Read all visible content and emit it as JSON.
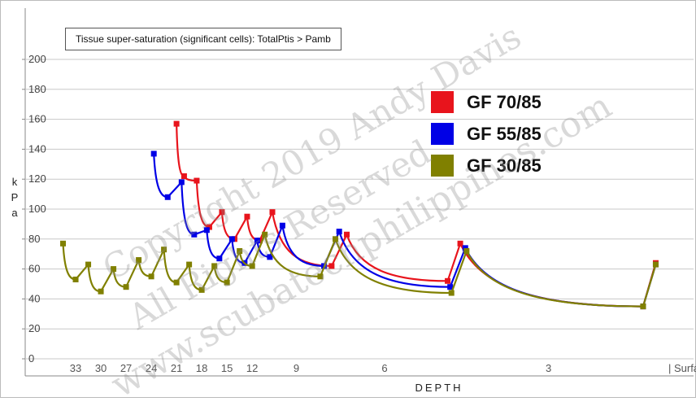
{
  "chart_data": {
    "type": "line",
    "title": "Tissue super-saturation (significant cells): TotalPtis > Pamb",
    "ylabel": "kPa",
    "xlabel": "DEPTH",
    "ylim": [
      0,
      200
    ],
    "y_ticks": [
      0,
      20,
      40,
      60,
      80,
      100,
      120,
      140,
      160,
      180,
      200
    ],
    "x_tick_labels": [
      {
        "label": "33",
        "x": 1
      },
      {
        "label": "30",
        "x": 3
      },
      {
        "label": "27",
        "x": 5
      },
      {
        "label": "24",
        "x": 7
      },
      {
        "label": "21",
        "x": 9
      },
      {
        "label": "18",
        "x": 11
      },
      {
        "label": "15",
        "x": 13
      },
      {
        "label": "12",
        "x": 15
      },
      {
        "label": "9",
        "x": 18.5
      },
      {
        "label": "6",
        "x": 25.5
      },
      {
        "label": "3",
        "x": 38.5
      },
      {
        "label": "| Surface -->",
        "x": 48
      }
    ],
    "xlim": [
      -3,
      50
    ],
    "grid": true,
    "legend_position": "top-right",
    "series": [
      {
        "name": "GF 70/85",
        "color": "#e8141c",
        "points": [
          {
            "x": 9,
            "y": 157
          },
          {
            "x": 9.6,
            "y": 122
          },
          {
            "x": 10.6,
            "y": 119
          },
          {
            "x": 11.6,
            "y": 88
          },
          {
            "x": 12.6,
            "y": 98
          },
          {
            "x": 13.6,
            "y": 80
          },
          {
            "x": 14.6,
            "y": 95
          },
          {
            "x": 15.6,
            "y": 79
          },
          {
            "x": 16.6,
            "y": 98
          },
          {
            "x": 21.3,
            "y": 62
          },
          {
            "x": 22.5,
            "y": 83
          },
          {
            "x": 30.5,
            "y": 52
          },
          {
            "x": 31.5,
            "y": 77
          },
          {
            "x": 46,
            "y": 35
          },
          {
            "x": 47,
            "y": 64
          }
        ],
        "segments": [
          [
            0,
            1
          ],
          [
            1,
            2
          ],
          [
            2,
            3
          ],
          [
            3,
            4
          ],
          [
            4,
            5
          ],
          [
            5,
            6
          ],
          [
            6,
            7
          ],
          [
            7,
            8
          ],
          [
            8,
            9
          ],
          [
            9,
            10
          ],
          [
            10,
            11
          ],
          [
            11,
            12
          ],
          [
            12,
            13
          ],
          [
            13,
            14
          ]
        ]
      },
      {
        "name": "GF 55/85",
        "color": "#0000e6",
        "points": [
          {
            "x": 7.2,
            "y": 137
          },
          {
            "x": 8.3,
            "y": 108
          },
          {
            "x": 9.4,
            "y": 118
          },
          {
            "x": 10.4,
            "y": 83
          },
          {
            "x": 11.4,
            "y": 86
          },
          {
            "x": 12.4,
            "y": 67
          },
          {
            "x": 13.4,
            "y": 80
          },
          {
            "x": 14.4,
            "y": 64
          },
          {
            "x": 15.4,
            "y": 79
          },
          {
            "x": 16.4,
            "y": 68
          },
          {
            "x": 17.4,
            "y": 89
          },
          {
            "x": 20.7,
            "y": 62
          },
          {
            "x": 21.9,
            "y": 85
          },
          {
            "x": 30.7,
            "y": 48
          },
          {
            "x": 31.9,
            "y": 74
          },
          {
            "x": 46,
            "y": 35
          },
          {
            "x": 47,
            "y": 63
          }
        ],
        "segments": [
          [
            0,
            1
          ],
          [
            1,
            2
          ],
          [
            2,
            3
          ],
          [
            3,
            4
          ],
          [
            4,
            5
          ],
          [
            5,
            6
          ],
          [
            6,
            7
          ],
          [
            7,
            8
          ],
          [
            8,
            9
          ],
          [
            9,
            10
          ],
          [
            10,
            11
          ],
          [
            11,
            12
          ],
          [
            12,
            13
          ],
          [
            13,
            14
          ],
          [
            14,
            15
          ],
          [
            15,
            16
          ]
        ]
      },
      {
        "name": "GF 30/85",
        "color": "#808000",
        "points": [
          {
            "x": 0,
            "y": 77
          },
          {
            "x": 1,
            "y": 53
          },
          {
            "x": 2,
            "y": 63
          },
          {
            "x": 3,
            "y": 45
          },
          {
            "x": 4,
            "y": 60
          },
          {
            "x": 5,
            "y": 48
          },
          {
            "x": 6,
            "y": 66
          },
          {
            "x": 7,
            "y": 55
          },
          {
            "x": 8,
            "y": 73
          },
          {
            "x": 9,
            "y": 51
          },
          {
            "x": 10,
            "y": 63
          },
          {
            "x": 11,
            "y": 46
          },
          {
            "x": 12,
            "y": 62
          },
          {
            "x": 13,
            "y": 51
          },
          {
            "x": 14,
            "y": 72
          },
          {
            "x": 15,
            "y": 62
          },
          {
            "x": 16,
            "y": 83
          },
          {
            "x": 20.4,
            "y": 55
          },
          {
            "x": 21.6,
            "y": 80
          },
          {
            "x": 30.8,
            "y": 44
          },
          {
            "x": 32,
            "y": 72
          },
          {
            "x": 46,
            "y": 35
          },
          {
            "x": 47,
            "y": 63
          }
        ],
        "segments": [
          [
            0,
            1
          ],
          [
            1,
            2
          ],
          [
            2,
            3
          ],
          [
            3,
            4
          ],
          [
            4,
            5
          ],
          [
            5,
            6
          ],
          [
            6,
            7
          ],
          [
            7,
            8
          ],
          [
            8,
            9
          ],
          [
            9,
            10
          ],
          [
            10,
            11
          ],
          [
            11,
            12
          ],
          [
            12,
            13
          ],
          [
            13,
            14
          ],
          [
            14,
            15
          ],
          [
            15,
            16
          ],
          [
            16,
            17
          ],
          [
            17,
            18
          ],
          [
            18,
            19
          ],
          [
            19,
            20
          ],
          [
            20,
            21
          ],
          [
            21,
            22
          ]
        ]
      }
    ]
  },
  "watermark": {
    "line1": "Copyright 2019 Andy Davis",
    "line2": "All Rights Reserved",
    "line3": "www.scubatechphilippines.com"
  }
}
